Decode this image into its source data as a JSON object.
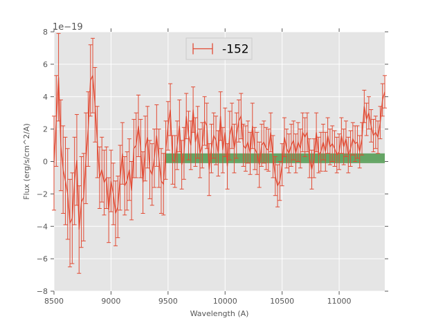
{
  "chart_data": {
    "type": "line",
    "xlabel": "Wavelength (A)",
    "ylabel": "Flux (erg/s/cm^2/A)",
    "y_offset_label": "1e−19",
    "xlim": [
      8500,
      11400
    ],
    "ylim": [
      -8,
      8
    ],
    "x_ticks": [
      8500,
      9000,
      9500,
      10000,
      10500,
      11000
    ],
    "x_tick_labels": [
      "8500",
      "9000",
      "9500",
      "10000",
      "10500",
      "11000"
    ],
    "y_ticks": [
      -8,
      -6,
      -4,
      -2,
      0,
      2,
      4,
      6,
      8
    ],
    "y_tick_labels": [
      "−8",
      "−6",
      "−4",
      "−2",
      "0",
      "2",
      "4",
      "6",
      "8"
    ],
    "grid": true,
    "legend_position": "top-center",
    "colors": {
      "series": "#e24a33",
      "band": "#4f9a4f",
      "plot_bg": "#e5e5e5",
      "grid": "#ffffff"
    },
    "band": {
      "x_start": 9470,
      "x_end": 11400,
      "y_low": -0.1,
      "y_high": 0.5
    },
    "series": [
      {
        "name": "-152",
        "x": [
          8500,
          8520,
          8540,
          8560,
          8580,
          8600,
          8620,
          8640,
          8660,
          8680,
          8700,
          8720,
          8740,
          8760,
          8780,
          8800,
          8820,
          8840,
          8860,
          8880,
          8900,
          8920,
          8940,
          8960,
          8980,
          9000,
          9020,
          9040,
          9060,
          9080,
          9100,
          9120,
          9140,
          9160,
          9180,
          9200,
          9220,
          9240,
          9260,
          9280,
          9300,
          9320,
          9340,
          9360,
          9380,
          9400,
          9420,
          9440,
          9460,
          9480,
          9500,
          9520,
          9540,
          9560,
          9580,
          9600,
          9620,
          9640,
          9660,
          9680,
          9700,
          9720,
          9740,
          9760,
          9780,
          9800,
          9820,
          9840,
          9860,
          9880,
          9900,
          9920,
          9940,
          9960,
          9980,
          10000,
          10020,
          10040,
          10060,
          10080,
          10100,
          10120,
          10140,
          10160,
          10180,
          10200,
          10220,
          10240,
          10260,
          10280,
          10300,
          10320,
          10340,
          10360,
          10380,
          10400,
          10420,
          10440,
          10460,
          10480,
          10500,
          10520,
          10540,
          10560,
          10580,
          10600,
          10620,
          10640,
          10660,
          10680,
          10700,
          10720,
          10740,
          10760,
          10780,
          10800,
          10820,
          10840,
          10860,
          10880,
          10900,
          10920,
          10940,
          10960,
          10980,
          11000,
          11020,
          11040,
          11060,
          11080,
          11100,
          11120,
          11140,
          11160,
          11180,
          11200,
          11220,
          11240,
          11260,
          11280,
          11300,
          11320,
          11340,
          11360,
          11380,
          11400
        ],
        "y": [
          -0.1,
          2.5,
          5.2,
          1.0,
          -0.5,
          -1.2,
          -2.0,
          -3.8,
          -3.5,
          -1.2,
          0.1,
          -4.2,
          -2.5,
          -2.2,
          0.2,
          2.0,
          5.0,
          5.3,
          3.5,
          1.2,
          -1.0,
          -0.5,
          -1.3,
          -1.0,
          -3.0,
          -1.2,
          -2.0,
          -3.2,
          -2.8,
          -1.0,
          0.5,
          -1.5,
          -1.2,
          -0.5,
          -1.8,
          0.8,
          1.0,
          2.2,
          0.8,
          -1.3,
          0.8,
          1.5,
          -0.5,
          -0.8,
          0.2,
          1.6,
          0.2,
          -1.2,
          -1.4,
          0.7,
          2.2,
          3.2,
          0.1,
          0.0,
          1.0,
          2.2,
          -0.2,
          0.5,
          2.8,
          1.6,
          1.0,
          3.2,
          1.2,
          1.8,
          0.5,
          1.0,
          2.5,
          2.2,
          -0.5,
          0.8,
          1.6,
          1.3,
          0.5,
          2.8,
          0.7,
          1.8,
          -0.3,
          1.6,
          2.2,
          0.8,
          1.6,
          2.5,
          2.8,
          1.0,
          0.8,
          1.2,
          0.5,
          2.2,
          0.8,
          0.5,
          -0.2,
          1.0,
          1.2,
          0.8,
          0.7,
          1.8,
          0.3,
          -0.9,
          -1.5,
          -1.2,
          -0.2,
          1.5,
          0.8,
          0.5,
          1.0,
          1.3,
          0.5,
          1.2,
          0.8,
          1.8,
          1.5,
          1.8,
          0.2,
          -0.5,
          0.2,
          1.8,
          0.4,
          0.6,
          1.2,
          0.6,
          1.6,
          0.9,
          1.1,
          0.8,
          0.4,
          0.6,
          1.6,
          0.9,
          1.4,
          0.4,
          0.8,
          1.4,
          1.1,
          1.2,
          0.6,
          1.4,
          3.4,
          2.6,
          3.0,
          2.2,
          1.6,
          1.8,
          1.5,
          2.4,
          3.8,
          4.3
        ],
        "err": [
          2.9,
          2.8,
          2.7,
          2.8,
          2.7,
          2.7,
          2.8,
          2.7,
          2.8,
          2.7,
          2.8,
          2.7,
          2.8,
          2.7,
          2.8,
          2.3,
          2.2,
          2.3,
          2.3,
          2.2,
          1.9,
          2.0,
          2.0,
          1.9,
          2.0,
          1.9,
          1.9,
          2.0,
          1.9,
          2.0,
          1.9,
          1.8,
          1.8,
          1.9,
          1.8,
          1.8,
          2.0,
          1.9,
          1.8,
          1.9,
          2.0,
          1.9,
          1.8,
          1.9,
          1.8,
          1.9,
          1.8,
          2.0,
          1.9,
          1.8,
          1.5,
          1.6,
          1.5,
          1.6,
          1.5,
          1.6,
          1.5,
          1.6,
          1.4,
          1.5,
          1.5,
          1.4,
          1.5,
          1.6,
          1.5,
          1.4,
          1.5,
          1.4,
          1.6,
          1.5,
          1.4,
          1.5,
          1.4,
          1.5,
          1.4,
          1.5,
          1.4,
          1.5,
          1.4,
          1.5,
          1.4,
          1.3,
          1.4,
          1.3,
          1.4,
          1.3,
          1.3,
          1.4,
          1.3,
          1.3,
          1.4,
          1.3,
          1.3,
          1.3,
          1.3,
          1.2,
          1.3,
          1.2,
          1.3,
          1.2,
          1.3,
          1.2,
          1.2,
          1.2,
          1.3,
          1.2,
          1.2,
          1.2,
          1.2,
          1.2,
          1.2,
          1.2,
          1.2,
          1.2,
          1.2,
          1.2,
          1.1,
          1.2,
          1.1,
          1.2,
          1.1,
          1.1,
          1.1,
          1.1,
          1.1,
          1.1,
          1.1,
          1.1,
          1.1,
          1.1,
          1.1,
          1.0,
          1.1,
          1.0,
          1.0,
          1.0,
          1.0,
          1.0,
          1.0,
          1.0,
          1.0,
          1.0,
          1.0,
          1.0,
          1.0,
          1.0
        ]
      }
    ]
  }
}
